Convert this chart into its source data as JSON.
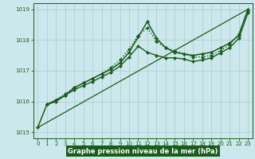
{
  "background_color": "#cce8ed",
  "grid_color": "#aacccc",
  "line_color": "#1a5c1a",
  "label_bg": "#1a5c1a",
  "xlabel": "Graphe pression niveau de la mer (hPa)",
  "xlim": [
    -0.5,
    23.5
  ],
  "ylim": [
    1014.8,
    1019.2
  ],
  "yticks": [
    1015,
    1016,
    1017,
    1018,
    1019
  ],
  "xticks": [
    0,
    1,
    2,
    3,
    4,
    5,
    6,
    7,
    8,
    9,
    10,
    11,
    12,
    13,
    14,
    15,
    16,
    17,
    18,
    19,
    20,
    21,
    22,
    23
  ],
  "series": [
    {
      "x": [
        0,
        1,
        2,
        3,
        4,
        5,
        6,
        7,
        8,
        9,
        10,
        11,
        12,
        13,
        14,
        15,
        16,
        17,
        18,
        19,
        20,
        21,
        22,
        23
      ],
      "y": [
        1015.15,
        1015.9,
        1016.0,
        1016.2,
        1016.45,
        1016.6,
        1016.75,
        1016.9,
        1017.05,
        1017.25,
        1017.6,
        1018.1,
        1018.6,
        1018.05,
        1017.75,
        1017.6,
        1017.55,
        1017.5,
        1017.55,
        1017.6,
        1017.75,
        1017.9,
        1018.15,
        1019.0
      ],
      "style": "-",
      "marker": "D",
      "markersize": 2.2,
      "linewidth": 1.1,
      "zorder": 4
    },
    {
      "x": [
        1,
        2,
        3,
        4,
        5,
        6,
        7,
        8,
        9,
        10,
        11,
        12,
        13,
        14,
        15,
        16,
        17,
        18,
        19,
        20,
        21,
        22,
        23
      ],
      "y": [
        1015.9,
        1016.05,
        1016.25,
        1016.45,
        1016.6,
        1016.75,
        1016.9,
        1017.1,
        1017.35,
        1017.7,
        1018.15,
        1018.4,
        1017.95,
        1017.75,
        1017.65,
        1017.55,
        1017.45,
        1017.45,
        1017.5,
        1017.65,
        1017.85,
        1018.2,
        1018.95
      ],
      "style": ":",
      "marker": "D",
      "markersize": 2.2,
      "linewidth": 1.0,
      "zorder": 3
    },
    {
      "x": [
        1,
        2,
        3,
        4,
        5,
        6,
        7,
        8,
        9,
        10,
        11,
        12,
        13,
        14,
        15,
        16,
        17,
        18,
        19,
        20,
        21,
        22,
        23
      ],
      "y": [
        1015.9,
        1016.05,
        1016.2,
        1016.38,
        1016.52,
        1016.65,
        1016.8,
        1016.95,
        1017.15,
        1017.45,
        1017.8,
        1017.6,
        1017.5,
        1017.42,
        1017.42,
        1017.38,
        1017.3,
        1017.35,
        1017.42,
        1017.58,
        1017.75,
        1018.05,
        1018.88
      ],
      "style": "-",
      "marker": "D",
      "markersize": 2.2,
      "linewidth": 1.0,
      "zorder": 3
    },
    {
      "x": [
        0,
        23
      ],
      "y": [
        1015.15,
        1019.0
      ],
      "style": "-",
      "marker": null,
      "markersize": 0,
      "linewidth": 0.9,
      "zorder": 2
    }
  ]
}
